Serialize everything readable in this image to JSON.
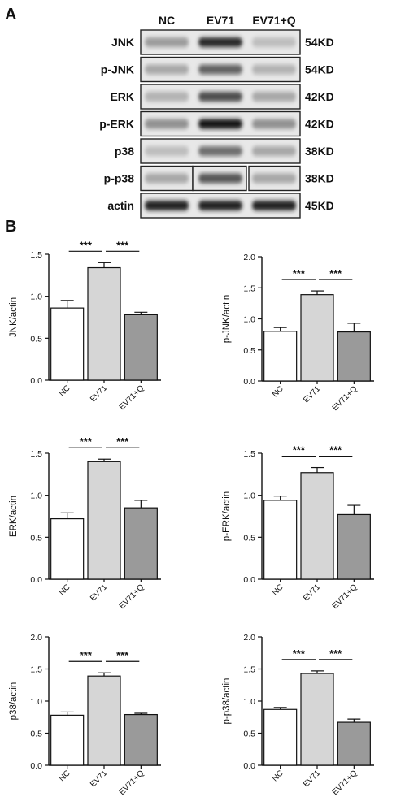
{
  "panel_a": {
    "label": "A",
    "columns": [
      "NC",
      "EV71",
      "EV71+Q"
    ],
    "blots": [
      {
        "protein": "JNK",
        "size": "54KD",
        "intensity": [
          0.35,
          0.85,
          0.2
        ]
      },
      {
        "protein": "p-JNK",
        "size": "54KD",
        "intensity": [
          0.3,
          0.6,
          0.25
        ]
      },
      {
        "protein": "ERK",
        "size": "42KD",
        "intensity": [
          0.25,
          0.7,
          0.3
        ]
      },
      {
        "protein": "p-ERK",
        "size": "42KD",
        "intensity": [
          0.4,
          0.95,
          0.4
        ]
      },
      {
        "protein": "p38",
        "size": "38KD",
        "intensity": [
          0.2,
          0.55,
          0.3
        ]
      },
      {
        "protein": "p-p38",
        "size": "38KD",
        "intensity": [
          0.3,
          0.65,
          0.3
        ]
      },
      {
        "protein": "actin",
        "size": "45KD",
        "intensity": [
          0.9,
          0.9,
          0.9
        ]
      }
    ]
  },
  "panel_b": {
    "label": "B"
  },
  "chart_data": [
    {
      "type": "bar",
      "ylabel": "JNK/actin",
      "categories": [
        "NC",
        "EV71",
        "EV71+Q"
      ],
      "values": [
        0.86,
        1.34,
        0.78
      ],
      "errors": [
        0.09,
        0.06,
        0.03
      ],
      "ylim": [
        0,
        1.5
      ],
      "yticks": [
        "0.0",
        "0.5",
        "1.0",
        "1.5"
      ],
      "significance": [
        "***",
        "***"
      ],
      "colors": [
        "#ffffff",
        "#d6d6d6",
        "#9a9a9a"
      ]
    },
    {
      "type": "bar",
      "ylabel": "p-JNK/actin",
      "categories": [
        "NC",
        "EV71",
        "EV71+Q"
      ],
      "values": [
        0.8,
        1.39,
        0.79
      ],
      "errors": [
        0.06,
        0.06,
        0.14
      ],
      "ylim": [
        0,
        2.0
      ],
      "yticks": [
        "0.0",
        "0.5",
        "1.0",
        "1.5",
        "2.0"
      ],
      "significance": [
        "***",
        "***"
      ],
      "colors": [
        "#ffffff",
        "#d6d6d6",
        "#9a9a9a"
      ]
    },
    {
      "type": "bar",
      "ylabel": "ERK/actin",
      "categories": [
        "NC",
        "EV71",
        "EV71+Q"
      ],
      "values": [
        0.72,
        1.4,
        0.85
      ],
      "errors": [
        0.07,
        0.03,
        0.09
      ],
      "ylim": [
        0,
        1.5
      ],
      "yticks": [
        "0.0",
        "0.5",
        "1.0",
        "1.5"
      ],
      "significance": [
        "***",
        "***"
      ],
      "colors": [
        "#ffffff",
        "#d6d6d6",
        "#9a9a9a"
      ]
    },
    {
      "type": "bar",
      "ylabel": "p-ERK/actin",
      "categories": [
        "NC",
        "EV71",
        "EV71+Q"
      ],
      "values": [
        0.94,
        1.27,
        0.77
      ],
      "errors": [
        0.05,
        0.06,
        0.11
      ],
      "ylim": [
        0,
        1.5
      ],
      "yticks": [
        "0.0",
        "0.5",
        "1.0",
        "1.5"
      ],
      "significance": [
        "***",
        "***"
      ],
      "colors": [
        "#ffffff",
        "#d6d6d6",
        "#9a9a9a"
      ]
    },
    {
      "type": "bar",
      "ylabel": "p38/actin",
      "categories": [
        "NC",
        "EV71",
        "EV71+Q"
      ],
      "values": [
        0.78,
        1.39,
        0.79
      ],
      "errors": [
        0.05,
        0.05,
        0.02
      ],
      "ylim": [
        0,
        2.0
      ],
      "yticks": [
        "0.0",
        "0.5",
        "1.0",
        "1.5",
        "2.0"
      ],
      "significance": [
        "***",
        "***"
      ],
      "colors": [
        "#ffffff",
        "#d6d6d6",
        "#9a9a9a"
      ]
    },
    {
      "type": "bar",
      "ylabel": "p-p38/actin",
      "categories": [
        "NC",
        "EV71",
        "EV71+Q"
      ],
      "values": [
        0.87,
        1.43,
        0.67
      ],
      "errors": [
        0.03,
        0.04,
        0.05
      ],
      "ylim": [
        0,
        2.0
      ],
      "yticks": [
        "0.0",
        "0.5",
        "1.0",
        "1.5",
        "2.0"
      ],
      "significance": [
        "***",
        "***"
      ],
      "colors": [
        "#ffffff",
        "#d6d6d6",
        "#9a9a9a"
      ]
    }
  ]
}
